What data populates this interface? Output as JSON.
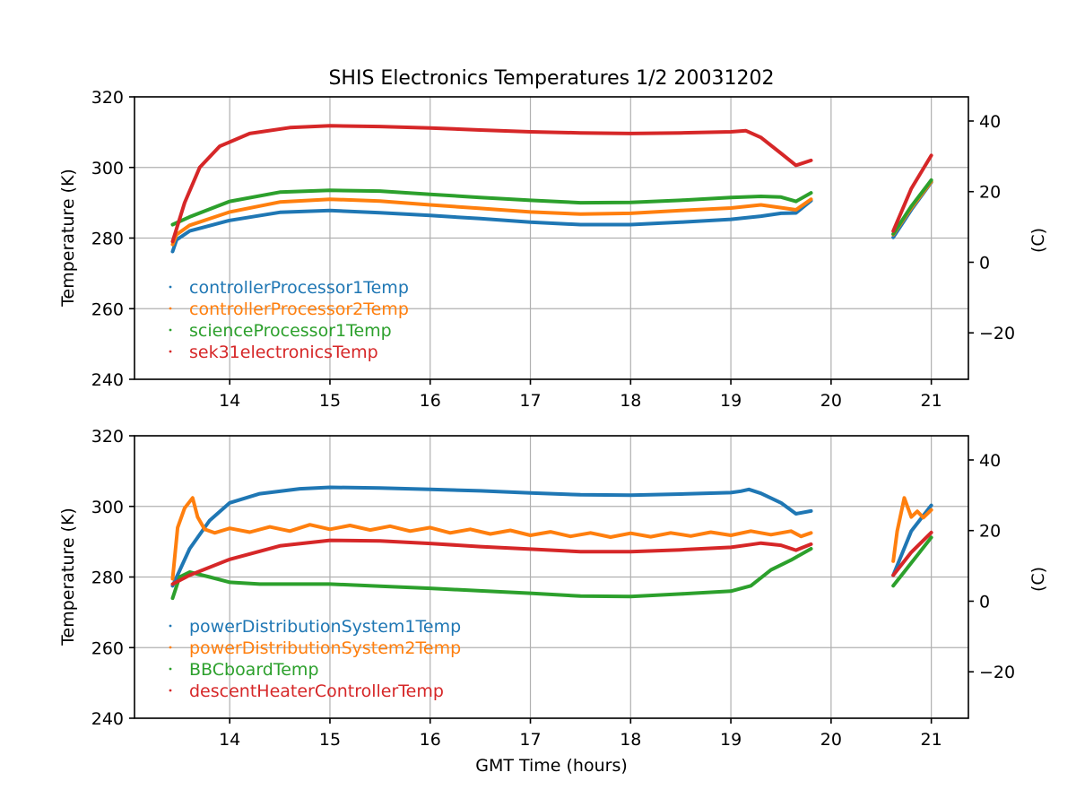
{
  "figure_title": "SHIS Electronics Temperatures 1/2 20031202",
  "chart_data": [
    {
      "type": "line",
      "title": "SHIS Electronics Temperatures 1/2 20031202",
      "xlabel": "",
      "ylabel": "Temperature (K)",
      "ylabel_right": "(C)",
      "xlim": [
        13.05,
        21.37
      ],
      "ylim": [
        240,
        320
      ],
      "xticks": [
        "14",
        "15",
        "16",
        "17",
        "18",
        "19",
        "20",
        "21"
      ],
      "yticks": [
        "240",
        "260",
        "280",
        "300",
        "320"
      ],
      "yticks_right": [
        "−20",
        "0",
        "20",
        "40"
      ],
      "yticks_right_values_k": [
        253.15,
        273.15,
        293.15,
        313.15
      ],
      "grid": true,
      "legend_position": "lower-left",
      "series": [
        {
          "name": "controllerProcessor1Temp",
          "color": "#1f77b4",
          "segments": [
            [
              [
                13.43,
                276.2
              ],
              [
                13.47,
                279.5
              ],
              [
                13.6,
                282
              ],
              [
                14,
                285
              ],
              [
                14.5,
                287.3
              ],
              [
                15,
                287.8
              ],
              [
                15.5,
                287.2
              ],
              [
                16,
                286.4
              ],
              [
                16.5,
                285.5
              ],
              [
                17,
                284.5
              ],
              [
                17.5,
                283.8
              ],
              [
                18,
                283.8
              ],
              [
                18.5,
                284.5
              ],
              [
                19,
                285.3
              ],
              [
                19.3,
                286.2
              ],
              [
                19.5,
                287
              ],
              [
                19.65,
                287.1
              ],
              [
                19.8,
                290.6
              ]
            ],
            [
              [
                20.62,
                280.2
              ],
              [
                20.8,
                288
              ],
              [
                21,
                295.8
              ]
            ]
          ]
        },
        {
          "name": "controllerProcessor2Temp",
          "color": "#ff7f0e",
          "segments": [
            [
              [
                13.43,
                278.2
              ],
              [
                13.47,
                281
              ],
              [
                13.6,
                283.6
              ],
              [
                14,
                287.4
              ],
              [
                14.5,
                290.2
              ],
              [
                15,
                291
              ],
              [
                15.5,
                290.5
              ],
              [
                16,
                289.4
              ],
              [
                16.5,
                288.4
              ],
              [
                17,
                287.4
              ],
              [
                17.5,
                286.8
              ],
              [
                18,
                287
              ],
              [
                18.5,
                287.8
              ],
              [
                19,
                288.5
              ],
              [
                19.3,
                289.4
              ],
              [
                19.5,
                288.6
              ],
              [
                19.65,
                288
              ],
              [
                19.8,
                291
              ]
            ],
            [
              [
                20.62,
                281
              ],
              [
                20.8,
                288.5
              ],
              [
                21,
                296
              ]
            ]
          ]
        },
        {
          "name": "scienceProcessor1Temp",
          "color": "#2ca02c",
          "segments": [
            [
              [
                13.43,
                283.8
              ],
              [
                13.6,
                286
              ],
              [
                14,
                290.4
              ],
              [
                14.5,
                293
              ],
              [
                15,
                293.5
              ],
              [
                15.5,
                293.3
              ],
              [
                16,
                292.4
              ],
              [
                16.5,
                291.5
              ],
              [
                17,
                290.7
              ],
              [
                17.5,
                290
              ],
              [
                18,
                290.1
              ],
              [
                18.5,
                290.7
              ],
              [
                19,
                291.5
              ],
              [
                19.3,
                291.8
              ],
              [
                19.5,
                291.6
              ],
              [
                19.65,
                290.4
              ],
              [
                19.8,
                292.8
              ]
            ],
            [
              [
                20.62,
                281.2
              ],
              [
                20.8,
                289
              ],
              [
                21,
                296.4
              ]
            ]
          ]
        },
        {
          "name": "sek31electronicsTemp",
          "color": "#d62728",
          "segments": [
            [
              [
                13.43,
                279
              ],
              [
                13.55,
                290
              ],
              [
                13.7,
                300
              ],
              [
                13.9,
                306
              ],
              [
                14.2,
                309.6
              ],
              [
                14.6,
                311.3
              ],
              [
                15,
                311.8
              ],
              [
                15.5,
                311.6
              ],
              [
                16,
                311.2
              ],
              [
                16.5,
                310.6
              ],
              [
                17,
                310.1
              ],
              [
                17.5,
                309.8
              ],
              [
                18,
                309.6
              ],
              [
                18.5,
                309.8
              ],
              [
                19,
                310.1
              ],
              [
                19.15,
                310.4
              ],
              [
                19.3,
                308.5
              ],
              [
                19.5,
                304
              ],
              [
                19.65,
                300.6
              ],
              [
                19.8,
                302
              ]
            ],
            [
              [
                20.62,
                282
              ],
              [
                20.8,
                294
              ],
              [
                21,
                303.4
              ]
            ]
          ]
        }
      ]
    },
    {
      "type": "line",
      "title": "",
      "xlabel": "GMT Time (hours)",
      "ylabel": "Temperature (K)",
      "ylabel_right": "(C)",
      "xlim": [
        13.05,
        21.37
      ],
      "ylim": [
        240,
        320
      ],
      "xticks": [
        "14",
        "15",
        "16",
        "17",
        "18",
        "19",
        "20",
        "21"
      ],
      "yticks": [
        "240",
        "260",
        "280",
        "300",
        "320"
      ],
      "yticks_right": [
        "−20",
        "0",
        "20",
        "40"
      ],
      "yticks_right_values_k": [
        253.15,
        273.15,
        293.15,
        313.15
      ],
      "grid": true,
      "legend_position": "lower-left",
      "series": [
        {
          "name": "powerDistributionSystem1Temp",
          "color": "#1f77b4",
          "segments": [
            [
              [
                13.43,
                277.5
              ],
              [
                13.6,
                288
              ],
              [
                13.8,
                296
              ],
              [
                14,
                301
              ],
              [
                14.3,
                303.6
              ],
              [
                14.7,
                305
              ],
              [
                15,
                305.4
              ],
              [
                15.5,
                305.2
              ],
              [
                16,
                304.8
              ],
              [
                16.5,
                304.4
              ],
              [
                17,
                303.8
              ],
              [
                17.5,
                303.3
              ],
              [
                18,
                303.2
              ],
              [
                18.5,
                303.5
              ],
              [
                19,
                303.9
              ],
              [
                19.1,
                304.3
              ],
              [
                19.18,
                304.8
              ],
              [
                19.3,
                303.7
              ],
              [
                19.5,
                301
              ],
              [
                19.65,
                297.9
              ],
              [
                19.8,
                298.7
              ]
            ],
            [
              [
                20.62,
                280.5
              ],
              [
                20.8,
                293
              ],
              [
                21,
                300.3
              ]
            ]
          ]
        },
        {
          "name": "powerDistributionSystem2Temp",
          "color": "#ff7f0e",
          "segments": [
            [
              [
                13.43,
                279.5
              ],
              [
                13.48,
                294
              ],
              [
                13.55,
                299.5
              ],
              [
                13.63,
                302.4
              ],
              [
                13.68,
                297
              ],
              [
                13.75,
                293.5
              ],
              [
                13.85,
                292.5
              ],
              [
                14,
                293.8
              ],
              [
                14.2,
                292.7
              ],
              [
                14.4,
                294.2
              ],
              [
                14.6,
                293
              ],
              [
                14.8,
                294.8
              ],
              [
                15,
                293.5
              ],
              [
                15.2,
                294.6
              ],
              [
                15.4,
                293.3
              ],
              [
                15.6,
                294.4
              ],
              [
                15.8,
                293
              ],
              [
                16,
                294
              ],
              [
                16.2,
                292.5
              ],
              [
                16.4,
                293.5
              ],
              [
                16.6,
                292.2
              ],
              [
                16.8,
                293.2
              ],
              [
                17,
                291.8
              ],
              [
                17.2,
                292.8
              ],
              [
                17.4,
                291.5
              ],
              [
                17.6,
                292.5
              ],
              [
                17.8,
                291.3
              ],
              [
                18,
                292.4
              ],
              [
                18.2,
                291.4
              ],
              [
                18.4,
                292.5
              ],
              [
                18.6,
                291.6
              ],
              [
                18.8,
                292.7
              ],
              [
                19,
                291.8
              ],
              [
                19.2,
                293
              ],
              [
                19.4,
                292
              ],
              [
                19.6,
                293
              ],
              [
                19.7,
                291.5
              ],
              [
                19.8,
                292.5
              ]
            ],
            [
              [
                20.62,
                284.5
              ],
              [
                20.66,
                293
              ],
              [
                20.73,
                302.4
              ],
              [
                20.8,
                297
              ],
              [
                20.86,
                298.6
              ],
              [
                20.92,
                296.8
              ],
              [
                21,
                299
              ]
            ]
          ]
        },
        {
          "name": "BBCboardTemp",
          "color": "#2ca02c",
          "segments": [
            [
              [
                13.43,
                274
              ],
              [
                13.5,
                280
              ],
              [
                13.6,
                281.4
              ],
              [
                13.8,
                280
              ],
              [
                14,
                278.5
              ],
              [
                14.3,
                278
              ],
              [
                15,
                278
              ],
              [
                15.5,
                277.4
              ],
              [
                16,
                276.8
              ],
              [
                16.5,
                276.1
              ],
              [
                17,
                275.4
              ],
              [
                17.5,
                274.6
              ],
              [
                18,
                274.5
              ],
              [
                18.5,
                275.2
              ],
              [
                19,
                276
              ],
              [
                19.2,
                277.5
              ],
              [
                19.4,
                282
              ],
              [
                19.6,
                284.8
              ],
              [
                19.8,
                288
              ]
            ],
            [
              [
                20.62,
                277.5
              ],
              [
                20.8,
                284
              ],
              [
                21,
                291.2
              ]
            ]
          ]
        },
        {
          "name": "descentHeaterControllerTemp",
          "color": "#d62728",
          "segments": [
            [
              [
                13.43,
                278
              ],
              [
                13.6,
                280.5
              ],
              [
                14,
                285
              ],
              [
                14.5,
                288.8
              ],
              [
                15,
                290.4
              ],
              [
                15.5,
                290.2
              ],
              [
                16,
                289.5
              ],
              [
                16.5,
                288.6
              ],
              [
                17,
                287.9
              ],
              [
                17.5,
                287.2
              ],
              [
                18,
                287.2
              ],
              [
                18.5,
                287.7
              ],
              [
                19,
                288.4
              ],
              [
                19.2,
                289.2
              ],
              [
                19.3,
                289.6
              ],
              [
                19.5,
                289
              ],
              [
                19.65,
                287.6
              ],
              [
                19.8,
                289.3
              ]
            ],
            [
              [
                20.62,
                280.5
              ],
              [
                20.8,
                287
              ],
              [
                21,
                292.6
              ]
            ]
          ]
        }
      ]
    }
  ]
}
